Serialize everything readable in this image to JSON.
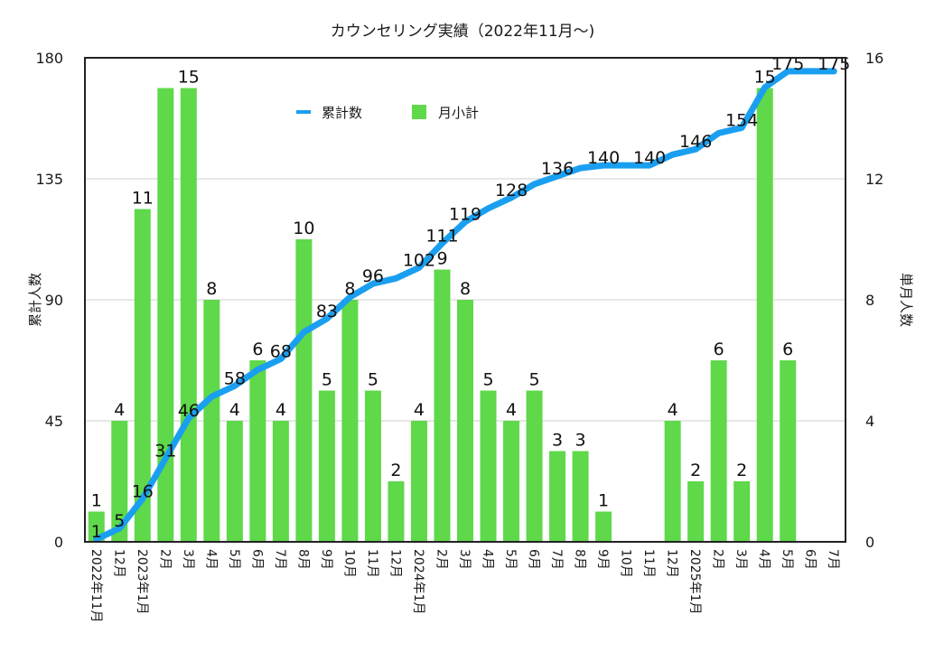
{
  "chart_data": {
    "type": "bar+line",
    "title": "カウンセリング実績（2022年11月〜)",
    "categories": [
      "2022年11月",
      "12月",
      "2023年1月",
      "2月",
      "3月",
      "4月",
      "5月",
      "6月",
      "7月",
      "8月",
      "9月",
      "10月",
      "11月",
      "12月",
      "2024年1月",
      "2月",
      "3月",
      "4月",
      "5月",
      "6月",
      "7月",
      "8月",
      "9月",
      "10月",
      "11月",
      "12月",
      "2025年1月",
      "2月",
      "3月",
      "4月",
      "5月",
      "6月",
      "7月"
    ],
    "series": [
      {
        "name": "累計数",
        "type": "line",
        "axis": "left",
        "color": "#1a9ff0",
        "values": [
          1,
          5,
          16,
          31,
          46,
          54,
          58,
          64,
          68,
          78,
          83,
          91,
          96,
          98,
          102,
          111,
          119,
          124,
          128,
          133,
          136,
          139,
          140,
          140,
          140,
          144,
          146,
          152,
          154,
          169,
          175,
          175,
          175
        ],
        "shown_labels": [
          1,
          5,
          16,
          31,
          46,
          null,
          58,
          null,
          68,
          null,
          83,
          null,
          96,
          null,
          102,
          111,
          119,
          null,
          128,
          null,
          136,
          null,
          140,
          null,
          140,
          null,
          146,
          null,
          154,
          null,
          175,
          null,
          175
        ]
      },
      {
        "name": "月小計",
        "type": "bar",
        "axis": "right",
        "color": "#5fd84a",
        "values": [
          1,
          4,
          11,
          15,
          15,
          8,
          4,
          6,
          4,
          10,
          5,
          8,
          5,
          2,
          4,
          9,
          8,
          5,
          4,
          5,
          3,
          3,
          1,
          0,
          0,
          4,
          2,
          6,
          2,
          15,
          6,
          0,
          0
        ],
        "shown_labels": [
          1,
          4,
          11,
          null,
          15,
          8,
          4,
          6,
          4,
          10,
          5,
          8,
          5,
          2,
          4,
          9,
          8,
          5,
          4,
          5,
          3,
          3,
          1,
          null,
          null,
          4,
          2,
          6,
          2,
          15,
          6,
          null,
          null
        ]
      }
    ],
    "ylabel_left": "累計人数",
    "ylabel_right": "単月人数",
    "ylim_left": [
      0,
      180
    ],
    "yticks_left": [
      "0",
      "45",
      "90",
      "135",
      "180"
    ],
    "ylim_right": [
      0,
      16
    ],
    "yticks_right": [
      "0",
      "4",
      "8",
      "12",
      "16"
    ],
    "grid": true,
    "legend_position": "top-center"
  }
}
